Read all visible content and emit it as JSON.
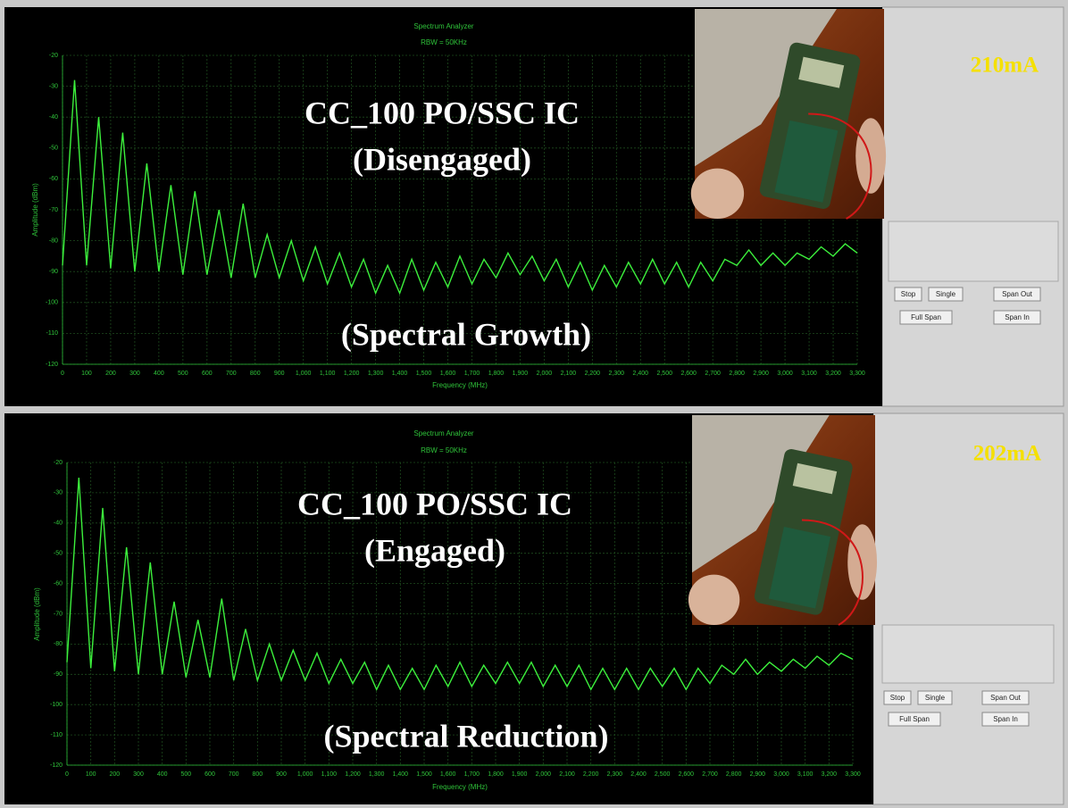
{
  "chart_data": [
    {
      "type": "line",
      "title": "Spectrum Analyzer",
      "subtitle": "RBW = 50KHz",
      "x_label": "Frequency (MHz)",
      "y_label": "Amplitude (dBm)",
      "color": "#3cf03c",
      "grid": true,
      "xlim": [
        0,
        3300
      ],
      "ylim": [
        -120,
        -20
      ],
      "yticks": [
        -120,
        -110,
        -100,
        -90,
        -80,
        -70,
        -60,
        -50,
        -40,
        -30,
        -20
      ],
      "xticks": [
        0,
        100,
        200,
        300,
        400,
        500,
        600,
        700,
        800,
        900,
        {
          "value": 1000,
          "label": "1,000"
        },
        {
          "value": 1100,
          "label": "1,100"
        },
        {
          "value": 1200,
          "label": "1,200"
        },
        {
          "value": 1300,
          "label": "1,300"
        },
        {
          "value": 1400,
          "label": "1,400"
        },
        {
          "value": 1500,
          "label": "1,500"
        },
        {
          "value": 1600,
          "label": "1,600"
        },
        {
          "value": 1700,
          "label": "1,700"
        },
        {
          "value": 1800,
          "label": "1,800"
        },
        {
          "value": 1900,
          "label": "1,900"
        },
        {
          "value": 2000,
          "label": "2,000"
        },
        {
          "value": 2100,
          "label": "2,100"
        },
        {
          "value": 2200,
          "label": "2,200"
        },
        {
          "value": 2300,
          "label": "2,300"
        },
        {
          "value": 2400,
          "label": "2,400"
        },
        {
          "value": 2500,
          "label": "2,500"
        },
        {
          "value": 2600,
          "label": "2,600"
        },
        {
          "value": 2700,
          "label": "2,700"
        },
        {
          "value": 2800,
          "label": "2,800"
        },
        {
          "value": 2900,
          "label": "2,900"
        },
        {
          "value": 3000,
          "label": "3,000"
        },
        {
          "value": 3100,
          "label": "3,100"
        },
        {
          "value": 3200,
          "label": "3,200"
        },
        {
          "value": 3300,
          "label": "3,300"
        }
      ],
      "x": [
        0,
        50,
        100,
        150,
        200,
        250,
        300,
        350,
        400,
        450,
        500,
        550,
        600,
        650,
        700,
        750,
        800,
        850,
        900,
        950,
        1000,
        1050,
        1100,
        1150,
        1200,
        1250,
        1300,
        1350,
        1400,
        1450,
        1500,
        1550,
        1600,
        1650,
        1700,
        1750,
        1800,
        1850,
        1900,
        1950,
        2000,
        2050,
        2100,
        2150,
        2200,
        2250,
        2300,
        2350,
        2400,
        2450,
        2500,
        2550,
        2600,
        2650,
        2700,
        2750,
        2800,
        2850,
        2900,
        2950,
        3000,
        3050,
        3100,
        3150,
        3200,
        3250,
        3300
      ],
      "values": [
        -88,
        -28,
        -88,
        -40,
        -89,
        -45,
        -90,
        -55,
        -90,
        -62,
        -91,
        -64,
        -91,
        -70,
        -92,
        -68,
        -92,
        -78,
        -92,
        -80,
        -93,
        -82,
        -94,
        -84,
        -95,
        -86,
        -97,
        -88,
        -97,
        -86,
        -96,
        -87,
        -95,
        -85,
        -94,
        -86,
        -92,
        -84,
        -91,
        -85,
        -93,
        -86,
        -95,
        -87,
        -96,
        -88,
        -95,
        -87,
        -94,
        -86,
        -94,
        -87,
        -95,
        -87,
        -93,
        -86,
        -88,
        -83,
        -88,
        -84,
        -88,
        -84,
        -86,
        -82,
        -85,
        -81,
        -84
      ]
    },
    {
      "type": "line",
      "title": "Spectrum Analyzer",
      "subtitle": "RBW = 50KHz",
      "x_label": "Frequency (MHz)",
      "y_label": "Amplitude (dBm)",
      "color": "#3cf03c",
      "grid": true,
      "xlim": [
        0,
        3300
      ],
      "ylim": [
        -120,
        -20
      ],
      "yticks": [
        -120,
        -110,
        -100,
        -90,
        -80,
        -70,
        -60,
        -50,
        -40,
        -30,
        -20
      ],
      "xticks": [
        0,
        100,
        200,
        300,
        400,
        500,
        600,
        700,
        800,
        900,
        {
          "value": 1000,
          "label": "1,000"
        },
        {
          "value": 1100,
          "label": "1,100"
        },
        {
          "value": 1200,
          "label": "1,200"
        },
        {
          "value": 1300,
          "label": "1,300"
        },
        {
          "value": 1400,
          "label": "1,400"
        },
        {
          "value": 1500,
          "label": "1,500"
        },
        {
          "value": 1600,
          "label": "1,600"
        },
        {
          "value": 1700,
          "label": "1,700"
        },
        {
          "value": 1800,
          "label": "1,800"
        },
        {
          "value": 1900,
          "label": "1,900"
        },
        {
          "value": 2000,
          "label": "2,000"
        },
        {
          "value": 2100,
          "label": "2,100"
        },
        {
          "value": 2200,
          "label": "2,200"
        },
        {
          "value": 2300,
          "label": "2,300"
        },
        {
          "value": 2400,
          "label": "2,400"
        },
        {
          "value": 2500,
          "label": "2,500"
        },
        {
          "value": 2600,
          "label": "2,600"
        },
        {
          "value": 2700,
          "label": "2,700"
        },
        {
          "value": 2800,
          "label": "2,800"
        },
        {
          "value": 2900,
          "label": "2,900"
        },
        {
          "value": 3000,
          "label": "3,000"
        },
        {
          "value": 3100,
          "label": "3,100"
        },
        {
          "value": 3200,
          "label": "3,200"
        },
        {
          "value": 3300,
          "label": "3,300"
        }
      ],
      "x": [
        0,
        50,
        100,
        150,
        200,
        250,
        300,
        350,
        400,
        450,
        500,
        550,
        600,
        650,
        700,
        750,
        800,
        850,
        900,
        950,
        1000,
        1050,
        1100,
        1150,
        1200,
        1250,
        1300,
        1350,
        1400,
        1450,
        1500,
        1550,
        1600,
        1650,
        1700,
        1750,
        1800,
        1850,
        1900,
        1950,
        2000,
        2050,
        2100,
        2150,
        2200,
        2250,
        2300,
        2350,
        2400,
        2450,
        2500,
        2550,
        2600,
        2650,
        2700,
        2750,
        2800,
        2850,
        2900,
        2950,
        3000,
        3050,
        3100,
        3150,
        3200,
        3250,
        3300
      ],
      "values": [
        -86,
        -25,
        -88,
        -35,
        -89,
        -48,
        -90,
        -53,
        -90,
        -66,
        -91,
        -72,
        -91,
        -65,
        -92,
        -75,
        -92,
        -80,
        -92,
        -82,
        -92,
        -83,
        -93,
        -85,
        -93,
        -86,
        -95,
        -87,
        -95,
        -88,
        -95,
        -87,
        -94,
        -86,
        -94,
        -87,
        -93,
        -86,
        -93,
        -86,
        -94,
        -87,
        -94,
        -87,
        -95,
        -88,
        -95,
        -88,
        -95,
        -88,
        -94,
        -88,
        -95,
        -88,
        -93,
        -87,
        -90,
        -85,
        -90,
        -86,
        -89,
        -85,
        -88,
        -84,
        -87,
        -83,
        -85
      ]
    }
  ],
  "overlays": [
    {
      "heading": "CC_100 PO/SSC IC",
      "state": "(Disengaged)",
      "caption": "(Spectral Growth)",
      "current": "210mA"
    },
    {
      "heading": "CC_100 PO/SSC IC",
      "state": "(Engaged)",
      "caption": "(Spectral Reduction)",
      "current": "202mA"
    }
  ],
  "controls": [
    [
      "Stop",
      "Single",
      "Span Out",
      "Full Span",
      "Span In"
    ],
    [
      "Stop",
      "Single",
      "Span Out",
      "Full Span",
      "Span In"
    ]
  ]
}
